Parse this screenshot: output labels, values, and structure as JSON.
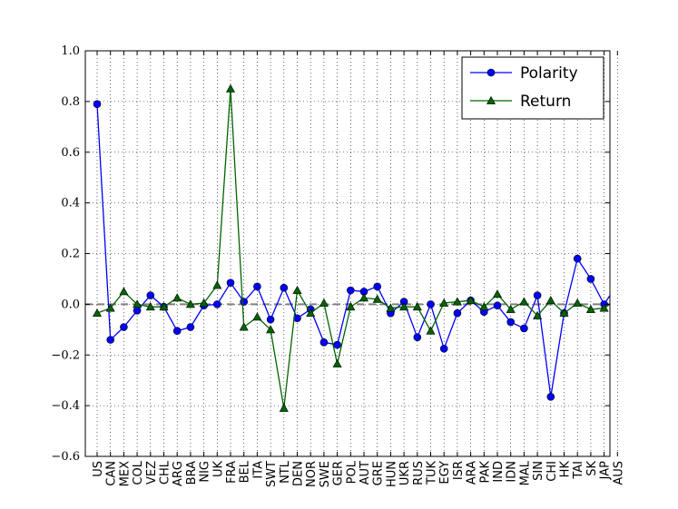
{
  "chart_data": {
    "type": "line",
    "categories": [
      "US",
      "CAN",
      "MEX",
      "COL",
      "VEZ",
      "CHL",
      "ARG",
      "BRA",
      "NIG",
      "UK",
      "FRA",
      "BEL",
      "ITA",
      "SWT",
      "NTL",
      "DEN",
      "NOR",
      "SWE",
      "GER",
      "POL",
      "AUT",
      "GRE",
      "HUN",
      "UKR",
      "RUS",
      "TUK",
      "EGY",
      "ISR",
      "ARA",
      "PAK",
      "IND",
      "IDN",
      "MAL",
      "SIN",
      "CHI",
      "HK",
      "TAI",
      "SK",
      "JAP",
      "AUS"
    ],
    "series": [
      {
        "name": "Polarity",
        "color": "#0000ff",
        "marker": "circle",
        "values": [
          0.79,
          -0.14,
          -0.09,
          -0.025,
          0.035,
          -0.01,
          -0.105,
          -0.09,
          -0.005,
          0.0,
          0.085,
          0.01,
          0.07,
          -0.06,
          0.065,
          -0.055,
          -0.02,
          -0.15,
          -0.16,
          0.055,
          0.05,
          0.07,
          -0.035,
          0.01,
          -0.13,
          0.0,
          -0.175,
          -0.035,
          0.015,
          -0.03,
          -0.005,
          -0.07,
          -0.095,
          0.035,
          -0.365,
          -0.035,
          0.18,
          0.1,
          0.0,
          0.08
        ]
      },
      {
        "name": "Return",
        "color": "#006400",
        "marker": "triangle",
        "values": [
          -0.035,
          -0.015,
          0.05,
          0.0,
          -0.01,
          -0.01,
          0.025,
          0.0,
          0.005,
          0.075,
          0.85,
          -0.09,
          -0.05,
          -0.1,
          -0.41,
          0.055,
          -0.035,
          0.005,
          -0.235,
          -0.01,
          0.025,
          0.02,
          -0.015,
          -0.01,
          -0.01,
          -0.105,
          0.005,
          0.01,
          0.015,
          -0.01,
          0.04,
          -0.02,
          0.01,
          -0.045,
          0.015,
          -0.035,
          0.005,
          -0.02,
          -0.015,
          0.02
        ]
      }
    ],
    "yticks": [
      "−0.6",
      "−0.4",
      "−0.2",
      "0.0",
      "0.2",
      "0.4",
      "0.6",
      "0.8",
      "1.0"
    ],
    "ylim": [
      -0.6,
      1.0
    ],
    "grid": true,
    "zero_line": true,
    "legend_position": "top-right"
  }
}
